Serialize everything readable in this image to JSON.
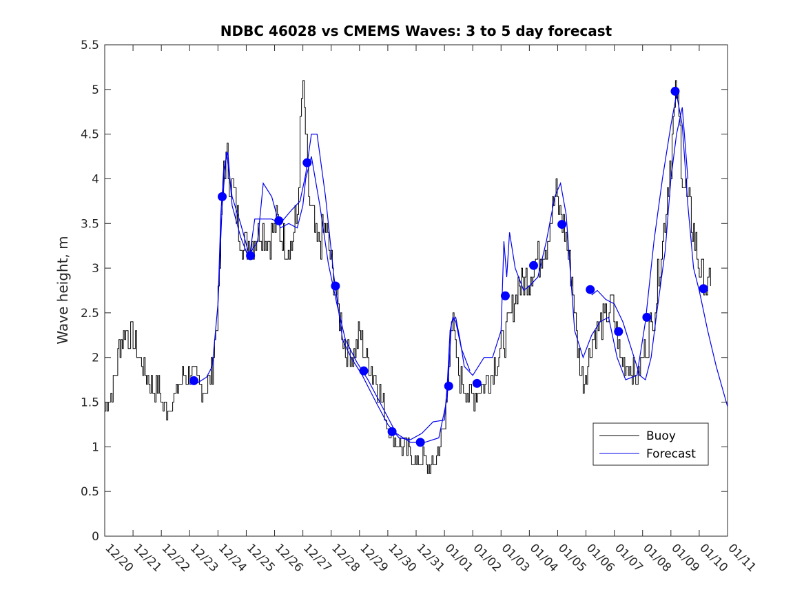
{
  "chart_data": {
    "type": "line",
    "title": "NDBC 46028 vs CMEMS Waves: 3 to 5 day forecast",
    "xlabel": "",
    "ylabel": "Wave height, m",
    "xlim": [
      0,
      22
    ],
    "ylim": [
      0,
      5.5
    ],
    "x_ticks": [
      0,
      1,
      2,
      3,
      4,
      5,
      6,
      7,
      8,
      9,
      10,
      11,
      12,
      13,
      14,
      15,
      16,
      17,
      18,
      19,
      20,
      21,
      22
    ],
    "x_tick_labels": [
      "12/20",
      "12/21",
      "12/22",
      "12/23",
      "12/24",
      "12/25",
      "12/26",
      "12/27",
      "12/28",
      "12/29",
      "12/30",
      "12/31",
      "01/01",
      "01/02",
      "01/03",
      "01/04",
      "01/05",
      "01/06",
      "01/07",
      "01/08",
      "01/09",
      "01/10",
      "01/11"
    ],
    "y_ticks": [
      0,
      0.5,
      1,
      1.5,
      2,
      2.5,
      3,
      3.5,
      4,
      4.5,
      5,
      5.5
    ],
    "y_tick_labels": [
      "0",
      "0.5",
      "1",
      "1.5",
      "2",
      "2.5",
      "3",
      "3.5",
      "4",
      "4.5",
      "5",
      "5.5"
    ],
    "grid": false,
    "legend": {
      "position": "lower-right",
      "entries": [
        "Buoy",
        "Forecast"
      ]
    },
    "colors": {
      "buoy": "#000000",
      "forecast": "#0000ee",
      "markers": "#0000ff"
    },
    "series": [
      {
        "name": "Buoy",
        "x": [
          0,
          0.3,
          0.5,
          0.7,
          1,
          1.3,
          1.6,
          1.9,
          2.1,
          2.4,
          2.7,
          3,
          3.3,
          3.6,
          3.8,
          4,
          4.1,
          4.2,
          4.4,
          4.6,
          4.9,
          5.2,
          5.5,
          5.8,
          6.1,
          6.4,
          6.6,
          6.8,
          6.9,
          7,
          7.05,
          7.2,
          7.5,
          7.8,
          8,
          8.2,
          8.5,
          8.8,
          9,
          9.2,
          9.5,
          9.8,
          10,
          10.2,
          10.5,
          10.8,
          11,
          11.2,
          11.4,
          11.6,
          11.8,
          12,
          12.1,
          12.2,
          12.3,
          12.5,
          12.8,
          13,
          13.3,
          13.6,
          14,
          14.3,
          14.6,
          15,
          15.3,
          15.6,
          15.9,
          16.2,
          16.5,
          16.7,
          16.9,
          17.1,
          17.3,
          17.6,
          17.9,
          18.2,
          18.5,
          18.8,
          19.1,
          19.4,
          19.7,
          20,
          20.2,
          20.4,
          20.6,
          20.8,
          21,
          21.2,
          21.3,
          21.4
        ],
        "y": [
          1.45,
          1.65,
          2.1,
          2.3,
          2.2,
          1.95,
          1.7,
          1.65,
          1.4,
          1.5,
          1.75,
          1.85,
          1.7,
          1.65,
          1.9,
          2.6,
          3.4,
          4.2,
          4.1,
          3.7,
          3.2,
          3.3,
          3.45,
          3.3,
          3.5,
          3.3,
          3.25,
          3.6,
          4.5,
          5.1,
          4.7,
          3.8,
          3.2,
          3.5,
          3.0,
          2.6,
          2.1,
          2.0,
          2.3,
          2.0,
          1.8,
          1.5,
          1.2,
          1.1,
          1.0,
          0.95,
          0.8,
          0.9,
          0.75,
          0.8,
          1.0,
          1.2,
          1.7,
          2.4,
          2.3,
          1.8,
          1.6,
          1.55,
          1.65,
          1.8,
          2.1,
          2.4,
          2.8,
          2.9,
          3.1,
          3.3,
          3.8,
          3.5,
          2.9,
          2.1,
          1.7,
          2.0,
          2.3,
          2.4,
          2.6,
          2.0,
          1.9,
          1.75,
          2.1,
          2.5,
          3.3,
          4.3,
          5.0,
          4.1,
          3.7,
          3.4,
          3.0,
          2.85,
          2.8,
          2.8
        ]
      },
      {
        "name": "Forecast",
        "segments": [
          {
            "x": [
              3,
              3.3,
              3.6,
              3.8,
              4,
              4.1,
              4.2,
              4.35,
              4.5,
              4.8,
              5.1,
              5.3,
              5.6,
              5.9,
              6.2,
              6.6,
              6.9,
              7.1,
              7.3,
              7.5,
              7.8,
              8.1,
              8.4,
              8.7,
              9.1,
              9.5,
              10,
              10.4,
              10.8,
              11.2,
              11.6,
              12,
              12.1,
              12.2,
              12.3,
              12.4,
              12.6,
              12.9
            ],
            "y": [
              1.7,
              1.72,
              1.78,
              1.9,
              2.6,
              3.6,
              4.1,
              4.3,
              3.7,
              3.35,
              3.1,
              3.55,
              3.55,
              3.55,
              3.5,
              3.65,
              3.75,
              4.05,
              4.5,
              4.5,
              3.8,
              2.9,
              2.2,
              2.0,
              1.8,
              1.55,
              1.25,
              1.1,
              1.08,
              1.15,
              1.28,
              1.3,
              1.7,
              2.3,
              2.45,
              2.4,
              2.1,
              1.85
            ]
          },
          {
            "x": [
              4,
              4.15,
              4.3,
              4.5,
              4.8,
              5.1,
              5.4,
              5.6,
              5.9,
              6.2,
              6.5,
              6.8,
              7,
              7.1,
              7.3,
              7.6,
              7.9,
              8.2,
              8.5,
              8.9,
              9.3,
              9.8,
              10.3,
              10.8,
              11.3,
              11.8,
              12.1,
              12.25,
              12.4,
              12.55,
              12.7,
              13,
              13.4,
              13.7,
              14,
              14.1,
              14.2,
              14.3,
              14.5,
              14.8,
              15,
              15.3,
              15.6,
              15.9,
              16.1,
              16.3,
              16.6,
              16.9,
              17.2,
              17.5,
              17.8,
              18.1,
              18.4,
              18.8,
              19.1,
              19.4,
              19.7,
              20,
              20.2,
              20.4,
              20.6,
              20.8,
              21,
              21.3,
              21.6,
              22
            ],
            "y": [
              2.6,
              3.7,
              4.3,
              3.8,
              3.5,
              3.15,
              3.3,
              3.95,
              3.8,
              3.45,
              3.5,
              3.45,
              3.7,
              4.0,
              4.25,
              3.7,
              3.05,
              2.6,
              2.2,
              1.95,
              1.75,
              1.45,
              1.15,
              1.05,
              1.05,
              1.1,
              1.55,
              2.4,
              2.45,
              2.2,
              1.9,
              1.8,
              2.0,
              2.0,
              2.3,
              3.3,
              2.9,
              3.4,
              3.0,
              2.75,
              2.8,
              2.9,
              3.3,
              3.8,
              3.95,
              3.6,
              2.3,
              2.0,
              2.25,
              2.4,
              2.45,
              2.0,
              1.75,
              1.8,
              2.4,
              3.3,
              4.0,
              4.6,
              4.95,
              4.6,
              3.7,
              3.0,
              2.75,
              2.3,
              1.9,
              1.45
            ]
          },
          {
            "x": [
              17.2,
              17.4,
              17.7,
              18,
              18.3,
              18.6,
              18.9,
              19.1,
              19.3,
              19.5,
              19.8,
              20,
              20.2,
              20.4,
              20.6
            ],
            "y": [
              2.7,
              2.75,
              2.65,
              2.6,
              2.4,
              2.1,
              1.8,
              1.75,
              2.0,
              2.5,
              3.2,
              4.0,
              4.5,
              4.8,
              4.0
            ]
          }
        ]
      }
    ],
    "markers": {
      "x": [
        3.15,
        4.15,
        5.15,
        6.15,
        7.15,
        8.15,
        9.15,
        10.15,
        11.15,
        12.15,
        13.15,
        14.15,
        15.15,
        16.15,
        17.15,
        18.15,
        19.15,
        20.15,
        21.15
      ],
      "y": [
        1.74,
        3.8,
        3.14,
        3.53,
        4.18,
        2.8,
        1.85,
        1.17,
        1.05,
        1.68,
        1.71,
        2.69,
        3.03,
        3.49,
        2.76,
        2.29,
        2.45,
        4.98,
        2.77
      ]
    }
  }
}
